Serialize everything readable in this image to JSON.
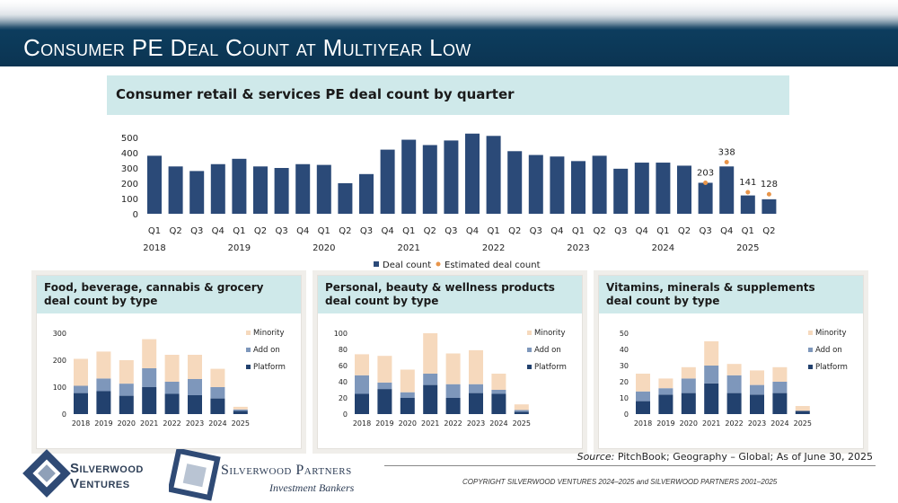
{
  "page": {
    "title": "Consumer PE Deal Count at Multiyear Low",
    "source_label": "Source:",
    "source_text": "PitchBook; Geography – Global; As of June 30, 2025",
    "copyright": "COPYRIGHT SILVERWOOD VENTURES 2024–2025 and SILVERWOOD PARTNERS 2001–2025",
    "logo1_line1": "Silverwood",
    "logo1_line2": "Ventures",
    "logo2_line1": "Silverwood Partners",
    "logo2_line2": "Investment Bankers"
  },
  "colors": {
    "deal": "#2b4a78",
    "estimate": "#e8954a",
    "minority": "#f6d9bd",
    "addon": "#7e97bb",
    "platform": "#22416e"
  },
  "chart_data": [
    {
      "type": "bar",
      "title": "Consumer retail & services PE deal count by quarter",
      "categories": [
        "Q1",
        "Q2",
        "Q3",
        "Q4",
        "Q1",
        "Q2",
        "Q3",
        "Q4",
        "Q1",
        "Q2",
        "Q3",
        "Q4",
        "Q1",
        "Q2",
        "Q3",
        "Q4",
        "Q1",
        "Q2",
        "Q3",
        "Q4",
        "Q1",
        "Q2",
        "Q3",
        "Q4",
        "Q1",
        "Q2",
        "Q3",
        "Q4",
        "Q1",
        "Q2"
      ],
      "year_labels": [
        "2018",
        "2019",
        "2020",
        "2021",
        "2022",
        "2023",
        "2024",
        "2025"
      ],
      "series": [
        {
          "name": "Deal count",
          "values": [
            380,
            310,
            280,
            325,
            360,
            310,
            300,
            325,
            320,
            200,
            260,
            420,
            485,
            450,
            480,
            525,
            510,
            410,
            385,
            375,
            345,
            380,
            295,
            335,
            335,
            315,
            203,
            310,
            120,
            95
          ]
        },
        {
          "name": "Estimated deal count",
          "points": [
            {
              "index": 26,
              "value": 203
            },
            {
              "index": 27,
              "value": 338
            },
            {
              "index": 28,
              "value": 141
            },
            {
              "index": 29,
              "value": 128
            }
          ]
        }
      ],
      "data_labels": [
        "203",
        "338",
        "141",
        "128"
      ],
      "y_ticks": [
        "0",
        "100",
        "200",
        "300",
        "400",
        "500"
      ],
      "ylim": [
        0,
        550
      ],
      "legend": "bottom"
    },
    {
      "type": "bar",
      "stacked": true,
      "title": "Food, beverage, cannabis & grocery deal count by type",
      "categories": [
        "2018",
        "2019",
        "2020",
        "2021",
        "2022",
        "2023",
        "2024",
        "2025"
      ],
      "series": [
        {
          "name": "Platform",
          "values": [
            78,
            85,
            68,
            100,
            75,
            70,
            58,
            12
          ]
        },
        {
          "name": "Add on",
          "values": [
            27,
            47,
            45,
            70,
            45,
            60,
            42,
            5
          ]
        },
        {
          "name": "Minority",
          "values": [
            100,
            100,
            87,
            108,
            100,
            90,
            68,
            10
          ]
        }
      ],
      "y_ticks": [
        "0",
        "100",
        "200",
        "300"
      ],
      "ylim": [
        0,
        300
      ],
      "legend": "right"
    },
    {
      "type": "bar",
      "stacked": true,
      "title": "Personal, beauty & wellness products deal count by type",
      "categories": [
        "2018",
        "2019",
        "2020",
        "2021",
        "2022",
        "2023",
        "2024",
        "2025"
      ],
      "series": [
        {
          "name": "Platform",
          "values": [
            25,
            31,
            20,
            36,
            20,
            26,
            25,
            3
          ]
        },
        {
          "name": "Add on",
          "values": [
            23,
            8,
            7,
            14,
            17,
            11,
            5,
            2
          ]
        },
        {
          "name": "Minority",
          "values": [
            26,
            33,
            28,
            50,
            38,
            42,
            20,
            7
          ]
        }
      ],
      "y_ticks": [
        "0",
        "20",
        "40",
        "60",
        "80",
        "100"
      ],
      "ylim": [
        0,
        100
      ],
      "legend": "right"
    },
    {
      "type": "bar",
      "stacked": true,
      "title": "Vitamins, minerals & supplements deal count by type",
      "categories": [
        "2018",
        "2019",
        "2020",
        "2021",
        "2022",
        "2023",
        "2024",
        "2025"
      ],
      "series": [
        {
          "name": "Platform",
          "values": [
            8,
            12,
            13,
            19,
            13,
            12,
            13,
            2
          ]
        },
        {
          "name": "Add on",
          "values": [
            6,
            4,
            9,
            11,
            11,
            6,
            7,
            0
          ]
        },
        {
          "name": "Minority",
          "values": [
            11,
            6,
            7,
            15,
            7,
            9,
            9,
            3
          ]
        }
      ],
      "y_ticks": [
        "0",
        "10",
        "20",
        "30",
        "40",
        "50"
      ],
      "ylim": [
        0,
        50
      ],
      "legend": "right"
    }
  ]
}
